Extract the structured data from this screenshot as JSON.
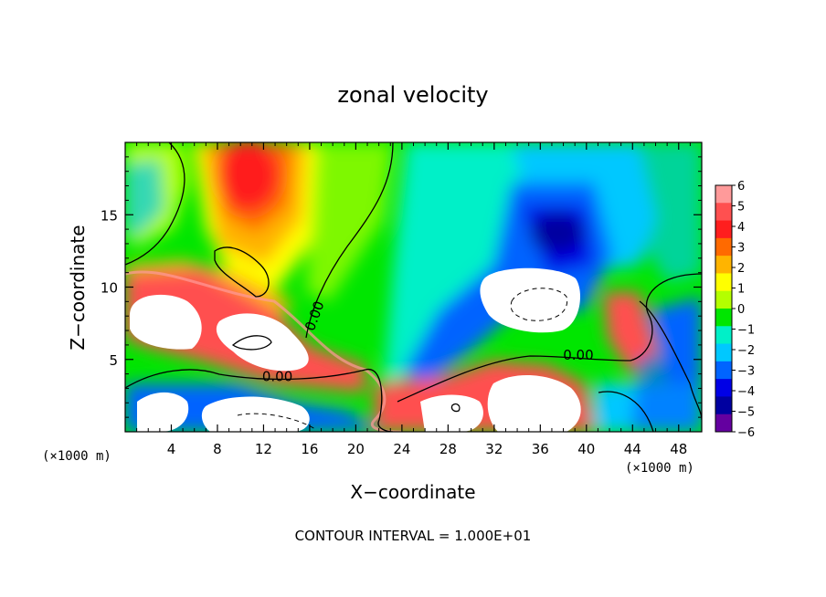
{
  "chart_data": {
    "type": "heatmap",
    "title": "zonal velocity",
    "xlabel": "X−coordinate",
    "ylabel": "Z−coordinate",
    "x_unit_label": "(×1000 m)",
    "x_unit_label_right": "(×1000 m)",
    "footnote": "CONTOUR INTERVAL = 1.000E+01",
    "xlim": [
      0,
      50
    ],
    "ylim": [
      0,
      20
    ],
    "x_ticks": [
      4,
      8,
      12,
      16,
      20,
      24,
      28,
      32,
      36,
      40,
      44,
      48
    ],
    "x_tick_labels": [
      "4",
      "8",
      "12",
      "16",
      "20",
      "24",
      "28",
      "32",
      "36",
      "40",
      "44",
      "48"
    ],
    "y_ticks": [
      5,
      10,
      15
    ],
    "y_tick_labels": [
      "5",
      "10",
      "15"
    ],
    "colorbar": {
      "min": -6,
      "max": 6,
      "tick_labels": [
        "6",
        "5",
        "4",
        "3",
        "2",
        "1",
        "0",
        "−1",
        "−2",
        "−3",
        "−4",
        "−5",
        "−6"
      ],
      "colors": [
        "#ff9a9a",
        "#ff5050",
        "#ff1e1e",
        "#ff6a00",
        "#ffb400",
        "#ffff00",
        "#b4ff00",
        "#00e600",
        "#00f0c8",
        "#00c8ff",
        "#0064ff",
        "#0000e6",
        "#0000a0",
        "#6400a0"
      ]
    },
    "contour_labels": [
      {
        "text": "0.00",
        "x": 13.2,
        "y": 3.5
      },
      {
        "text": "0.00",
        "x": 39.3,
        "y": 5.0
      },
      {
        "text": "0.00",
        "x": 16.8,
        "y": 7.9
      }
    ]
  }
}
